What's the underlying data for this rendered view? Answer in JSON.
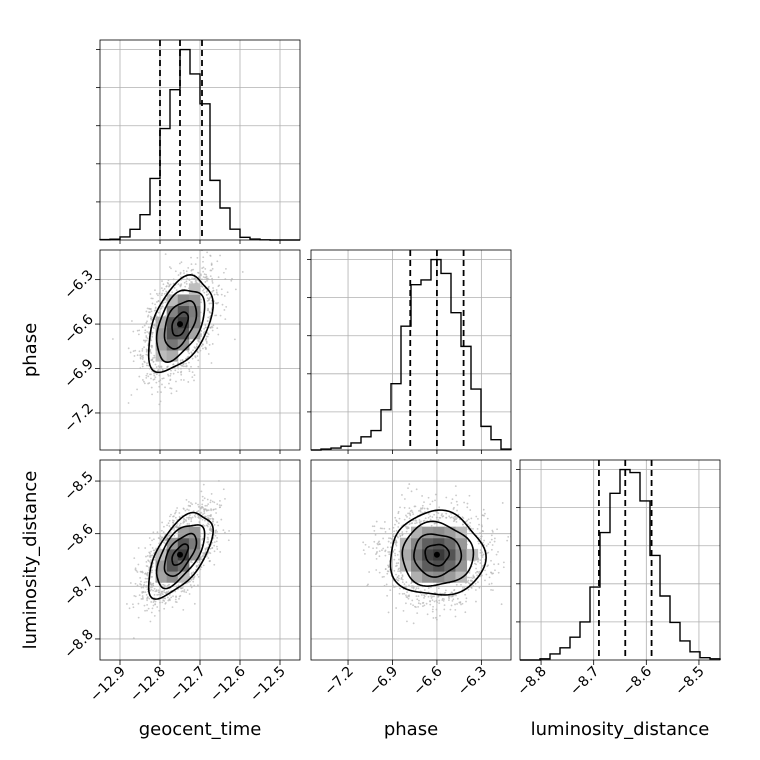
{
  "chart_data": {
    "type": "corner",
    "parameters": [
      {
        "name": "geocent_time",
        "label": "geocent_time",
        "range": [
          -12.95,
          -12.45
        ],
        "ticks": [
          -12.9,
          -12.8,
          -12.7,
          -12.6,
          -12.5
        ],
        "tick_labels": [
          "−12.9",
          "−12.8",
          "−12.7",
          "−12.6",
          "−12.5"
        ],
        "quantiles": [
          -12.8,
          -12.75,
          -12.695
        ],
        "mean": -12.75,
        "sd": 0.04,
        "histogram": {
          "bin_edges": [
            -12.95,
            -12.925,
            -12.9,
            -12.875,
            -12.85,
            -12.825,
            -12.8,
            -12.775,
            -12.75,
            -12.725,
            -12.7,
            -12.675,
            -12.65,
            -12.625,
            -12.6,
            -12.575,
            -12.55,
            -12.525,
            -12.5,
            -12.475,
            -12.45
          ],
          "counts": [
            2,
            4,
            16,
            56,
            133,
            323,
            585,
            789,
            1000,
            872,
            715,
            313,
            168,
            57,
            14,
            5,
            1,
            0,
            0,
            0
          ]
        }
      },
      {
        "name": "phase",
        "label": "phase",
        "range": [
          -7.45,
          -6.1
        ],
        "ticks": [
          -7.2,
          -6.9,
          -6.6,
          -6.3
        ],
        "tick_labels": [
          "−7.2",
          "−6.9",
          "−6.6",
          "−6.3"
        ],
        "quantiles": [
          -6.78,
          -6.6,
          -6.42
        ],
        "mean": -6.6,
        "sd": 0.16,
        "histogram": {
          "bin_edges": [
            -7.45,
            -7.3825,
            -7.315,
            -7.2475,
            -7.18,
            -7.1125,
            -7.045,
            -6.9775,
            -6.91,
            -6.8425,
            -6.775,
            -6.7075,
            -6.64,
            -6.5725,
            -6.505,
            -6.4375,
            -6.37,
            -6.3025,
            -6.235,
            -6.1675,
            -6.1
          ],
          "counts": [
            0,
            5,
            10,
            20,
            37,
            69,
            102,
            211,
            348,
            650,
            868,
            893,
            1000,
            927,
            721,
            544,
            320,
            124,
            54,
            5
          ]
        }
      },
      {
        "name": "luminosity_distance",
        "label": "luminosity_distance",
        "range": [
          -8.84,
          -8.46
        ],
        "ticks": [
          -8.8,
          -8.7,
          -8.6,
          -8.5
        ],
        "tick_labels": [
          "−8.8",
          "−8.7",
          "−8.6",
          "−8.5"
        ],
        "quantiles": [
          -8.69,
          -8.64,
          -8.59
        ],
        "mean": -8.64,
        "sd": 0.04,
        "histogram": {
          "bin_edges": [
            -8.84,
            -8.821,
            -8.802,
            -8.783,
            -8.764,
            -8.745,
            -8.726,
            -8.707,
            -8.688,
            -8.669,
            -8.65,
            -8.631,
            -8.612,
            -8.593,
            -8.574,
            -8.555,
            -8.536,
            -8.517,
            -8.498,
            -8.479,
            -8.46
          ],
          "counts": [
            0,
            0,
            6,
            32,
            64,
            120,
            200,
            383,
            669,
            875,
            1000,
            984,
            835,
            549,
            336,
            197,
            100,
            43,
            12,
            6
          ]
        }
      }
    ],
    "pairs": [
      {
        "x": "geocent_time",
        "y": "phase",
        "rho": 0.45
      },
      {
        "x": "geocent_time",
        "y": "luminosity_distance",
        "rho": 0.6
      },
      {
        "x": "phase",
        "y": "luminosity_distance",
        "rho": 0.0
      }
    ],
    "contour_levels": [
      0.118,
      0.393,
      0.675,
      0.864
    ],
    "grid": true,
    "legend": "none",
    "title": "",
    "colors": {
      "line": "#000000",
      "scatter": "#b4b4b4",
      "grid": "#b0b0b0",
      "density_dark": "#2a2a2a"
    }
  }
}
